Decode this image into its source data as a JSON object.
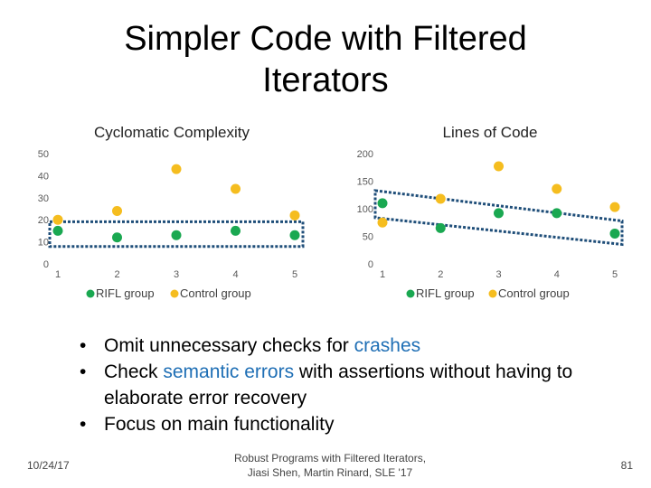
{
  "slide": {
    "title_line1": "Simpler Code with Filtered",
    "title_line2": "Iterators",
    "bullets": [
      {
        "before": "Omit unnecessary checks for ",
        "highlight": "crashes",
        "after": ""
      },
      {
        "before": "Check ",
        "highlight": "semantic errors",
        "after": " with assertions without having to elaborate error recovery"
      },
      {
        "before": "Focus on main functionality",
        "highlight": "",
        "after": ""
      }
    ],
    "footer": {
      "date": "10/24/17",
      "credit_line1": "Robust Programs with Filtered Iterators,",
      "credit_line2": "Jiasi Shen, Martin Rinard, SLE '17",
      "page": "81"
    }
  },
  "colors": {
    "rifl": "#1aa851",
    "control": "#f5bd1f",
    "highlight_box": "#1f4e79",
    "bullet_highlight": "#1f6fb5"
  },
  "chart_data": [
    {
      "type": "scatter",
      "title": "Cyclomatic Complexity",
      "x": [
        1,
        2,
        3,
        4,
        5
      ],
      "xticks": [
        "1",
        "2",
        "3",
        "4",
        "5"
      ],
      "ylim": [
        0,
        50
      ],
      "yticks": [
        "0",
        "10",
        "20",
        "30",
        "40",
        "50"
      ],
      "grid": false,
      "legend": "bottom",
      "series": [
        {
          "name": "RIFL group",
          "values": [
            15,
            12,
            13,
            15,
            13
          ]
        },
        {
          "name": "Control group",
          "values": [
            20,
            24,
            43,
            34,
            22
          ]
        }
      ]
    },
    {
      "type": "scatter",
      "title": "Lines of Code",
      "x": [
        1,
        2,
        3,
        4,
        5
      ],
      "xticks": [
        "1",
        "2",
        "3",
        "4",
        "5"
      ],
      "ylim": [
        0,
        200
      ],
      "yticks": [
        "0",
        "50",
        "100",
        "150",
        "200"
      ],
      "grid": false,
      "legend": "bottom",
      "series": [
        {
          "name": "RIFL group",
          "values": [
            110,
            65,
            92,
            92,
            55
          ]
        },
        {
          "name": "Control group",
          "values": [
            75,
            118,
            177,
            136,
            103
          ]
        }
      ]
    }
  ]
}
